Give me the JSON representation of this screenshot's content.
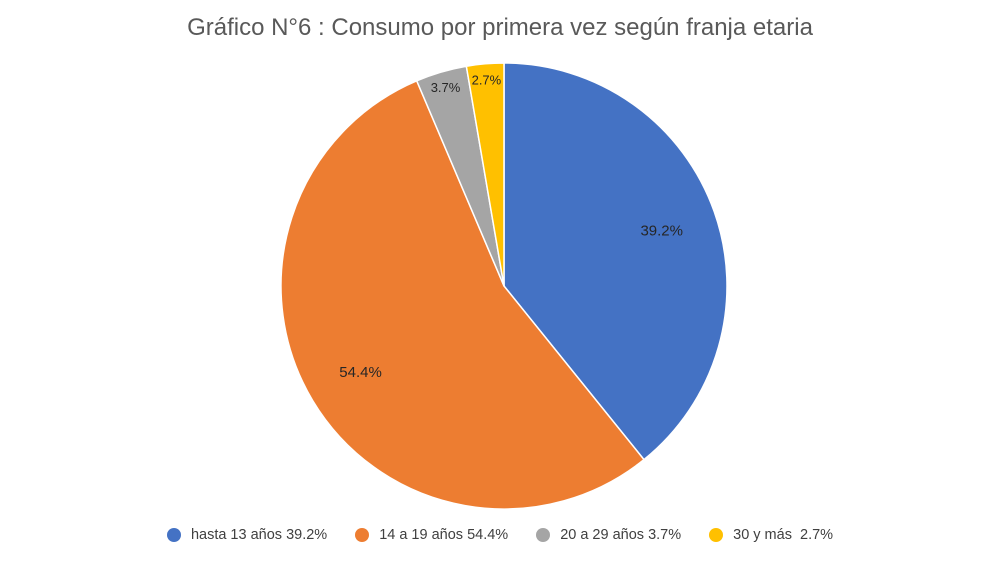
{
  "chart_data": {
    "type": "pie",
    "title": "Gráfico N°6 : Consumo por primera vez según franja etaria",
    "start": "top",
    "direction": "clockwise",
    "legend_position": "bottom",
    "slices": [
      {
        "legend": "hasta 13 años 39.2%",
        "value": 39.2,
        "label": "39.2%",
        "color": "#4472C4"
      },
      {
        "legend": "14 a 19 años 54.4%",
        "value": 54.4,
        "label": "54.4%",
        "color": "#ED7D31"
      },
      {
        "legend": "20 a 29 años 3.7%",
        "value": 3.7,
        "label": "3.7%",
        "color": "#A5A5A5"
      },
      {
        "legend": "30 y más  2.7%",
        "value": 2.7,
        "label": "2.7%",
        "color": "#FFC000"
      }
    ]
  }
}
